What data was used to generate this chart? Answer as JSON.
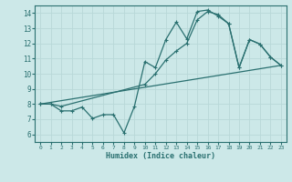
{
  "xlabel": "Humidex (Indice chaleur)",
  "bg_color": "#cce8e8",
  "grid_color": "#b8d8d8",
  "line_color": "#2a7070",
  "xlim": [
    -0.5,
    23.5
  ],
  "ylim": [
    5.5,
    14.5
  ],
  "yticks": [
    6,
    7,
    8,
    9,
    10,
    11,
    12,
    13,
    14
  ],
  "xticks": [
    0,
    1,
    2,
    3,
    4,
    5,
    6,
    7,
    8,
    9,
    10,
    11,
    12,
    13,
    14,
    15,
    16,
    17,
    18,
    19,
    20,
    21,
    22,
    23
  ],
  "line1_x": [
    0,
    1,
    2,
    3,
    4,
    5,
    6,
    7,
    8,
    9,
    10,
    11,
    12,
    13,
    14,
    15,
    16,
    17,
    18,
    19,
    20,
    21,
    22,
    23
  ],
  "line1_y": [
    8.0,
    8.0,
    7.55,
    7.55,
    7.8,
    7.05,
    7.3,
    7.3,
    6.1,
    7.85,
    10.8,
    10.4,
    12.25,
    13.4,
    12.3,
    14.1,
    14.2,
    13.8,
    13.3,
    10.4,
    12.25,
    11.95,
    11.1,
    10.55
  ],
  "line2_x": [
    0,
    1,
    2,
    10,
    11,
    12,
    13,
    14,
    15,
    16,
    17,
    18,
    19,
    20,
    21,
    22,
    23
  ],
  "line2_y": [
    8.0,
    8.0,
    7.85,
    9.3,
    10.0,
    10.9,
    11.5,
    12.0,
    13.55,
    14.1,
    13.9,
    13.3,
    10.4,
    12.25,
    11.95,
    11.1,
    10.55
  ],
  "line3_x": [
    0,
    23
  ],
  "line3_y": [
    8.0,
    10.55
  ]
}
